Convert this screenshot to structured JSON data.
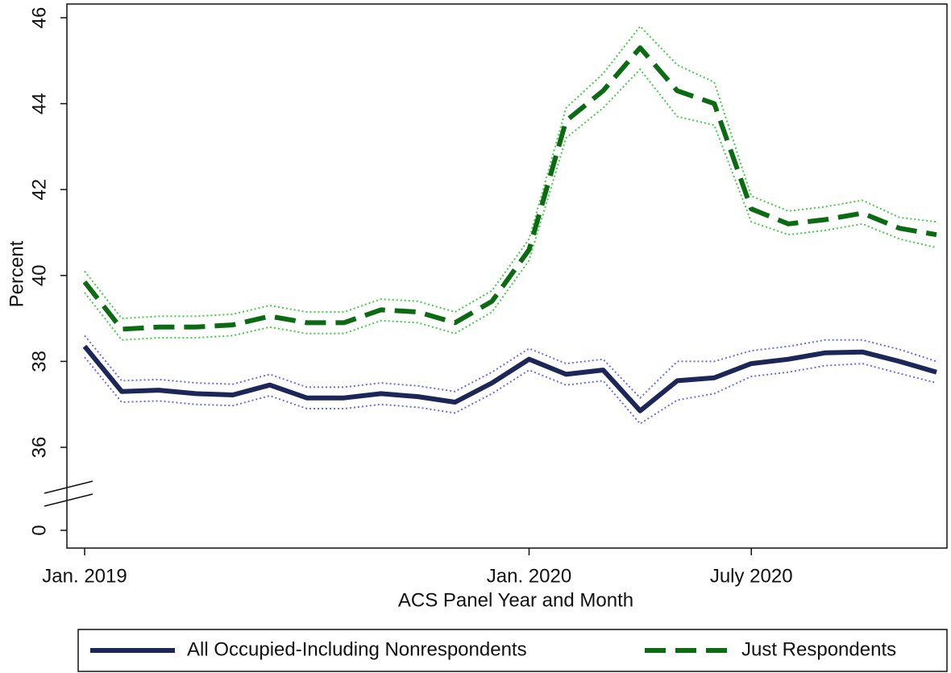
{
  "chart_data": {
    "type": "line",
    "xlabel": "ACS Panel Year and Month",
    "ylabel": "Percent",
    "categories": [
      "Jan. 2019",
      null,
      null,
      null,
      null,
      null,
      null,
      null,
      null,
      null,
      null,
      null,
      "Jan. 2020",
      null,
      null,
      null,
      null,
      null,
      "July 2020",
      null,
      null,
      null,
      null,
      null
    ],
    "ylim": [
      0,
      46.3
    ],
    "ybreak": [
      0,
      36
    ],
    "yticks": [
      0,
      36,
      38,
      40,
      42,
      44,
      46
    ],
    "series": [
      {
        "name": "All Occupied-Including Nonrespondents",
        "color": "#1c2757",
        "dash": "solid",
        "band_color": "#6b6bf0",
        "values": [
          38.35,
          37.3,
          37.33,
          37.25,
          37.22,
          37.45,
          37.15,
          37.15,
          37.25,
          37.18,
          37.05,
          37.5,
          38.05,
          37.7,
          37.8,
          36.85,
          37.55,
          37.62,
          37.95,
          38.05,
          38.2,
          38.22,
          38.0,
          37.75
        ],
        "ci_lower": [
          38.1,
          37.05,
          37.08,
          37.0,
          36.97,
          37.2,
          36.9,
          36.9,
          37.0,
          36.93,
          36.8,
          37.25,
          37.8,
          37.45,
          37.55,
          36.55,
          37.1,
          37.25,
          37.65,
          37.75,
          37.9,
          37.95,
          37.72,
          37.5
        ],
        "ci_upper": [
          38.6,
          37.55,
          37.58,
          37.5,
          37.47,
          37.7,
          37.4,
          37.4,
          37.5,
          37.43,
          37.3,
          37.75,
          38.3,
          37.95,
          38.05,
          37.15,
          38.0,
          38.0,
          38.25,
          38.35,
          38.5,
          38.5,
          38.28,
          38.0
        ]
      },
      {
        "name": "Just Respondents",
        "color": "#0a6b12",
        "dash": "dashed",
        "band_color": "#44cc44",
        "values": [
          39.85,
          38.75,
          38.8,
          38.8,
          38.85,
          39.05,
          38.9,
          38.9,
          39.2,
          39.15,
          38.9,
          39.4,
          40.6,
          43.6,
          44.3,
          45.3,
          44.3,
          44.0,
          41.55,
          41.2,
          41.3,
          41.45,
          41.1,
          40.95
        ],
        "ci_lower": [
          39.6,
          38.5,
          38.55,
          38.55,
          38.6,
          38.8,
          38.65,
          38.65,
          38.95,
          38.9,
          38.65,
          39.15,
          40.35,
          43.2,
          43.9,
          44.8,
          43.7,
          43.5,
          41.25,
          40.95,
          41.05,
          41.2,
          40.85,
          40.65
        ],
        "ci_upper": [
          40.1,
          39.0,
          39.05,
          39.05,
          39.1,
          39.3,
          39.15,
          39.15,
          39.45,
          39.4,
          39.15,
          39.65,
          40.85,
          43.9,
          44.7,
          45.8,
          44.9,
          44.5,
          41.85,
          41.5,
          41.6,
          41.75,
          41.35,
          41.25
        ]
      }
    ],
    "legend": "bottom"
  }
}
